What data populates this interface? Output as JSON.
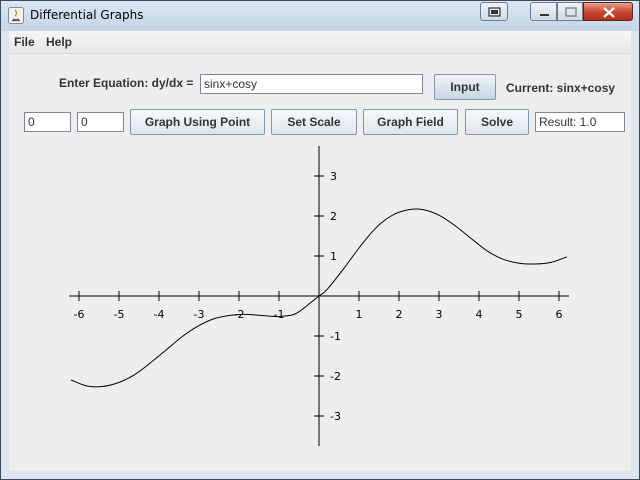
{
  "window": {
    "title": "Differential Graphs"
  },
  "menu": {
    "items": [
      "File",
      "Help"
    ]
  },
  "equation": {
    "label": "Enter Equation: dy/dx =",
    "value": "sinx+cosy",
    "input_button": "Input",
    "current": "Current: sinx+cosy"
  },
  "toolbar": {
    "x_value": "0",
    "y_value": "0",
    "graph_point_button": "Graph Using Point",
    "set_scale_button": "Set Scale",
    "graph_field_button": "Graph Field",
    "solve_button": "Solve",
    "result": "Result: 1.0"
  },
  "graph": {
    "x_ticks": [
      "-6",
      "-5",
      "-4",
      "-3",
      "-2",
      "-1",
      "1",
      "2",
      "3",
      "4",
      "5",
      "6"
    ],
    "y_ticks": [
      "3",
      "2",
      "1",
      "-1",
      "-2",
      "-3"
    ]
  },
  "chart_data": {
    "type": "line",
    "title": "",
    "xlabel": "",
    "ylabel": "",
    "xlim": [
      -6.2,
      6.2
    ],
    "ylim": [
      -3.7,
      3.7
    ],
    "grid": false,
    "series": [
      {
        "x": [
          -6.2,
          -5.8,
          -5.4,
          -5.0,
          -4.6,
          -4.2,
          -3.8,
          -3.4,
          -3.0,
          -2.6,
          -2.2,
          -1.8,
          -1.4,
          -1.0,
          -0.6,
          -0.2,
          0.0,
          0.2,
          0.6,
          1.0,
          1.4,
          1.8,
          2.2,
          2.6,
          3.0,
          3.4,
          3.8,
          4.2,
          4.6,
          5.0,
          5.4,
          5.8,
          6.2
        ],
        "y": [
          -2.1,
          -2.25,
          -2.26,
          -2.16,
          -1.96,
          -1.66,
          -1.33,
          -1.0,
          -0.74,
          -0.56,
          -0.48,
          -0.46,
          -0.49,
          -0.51,
          -0.45,
          -0.16,
          0.0,
          0.16,
          0.66,
          1.2,
          1.68,
          2.0,
          2.15,
          2.16,
          2.02,
          1.76,
          1.44,
          1.13,
          0.92,
          0.82,
          0.8,
          0.84,
          0.98
        ]
      }
    ]
  }
}
